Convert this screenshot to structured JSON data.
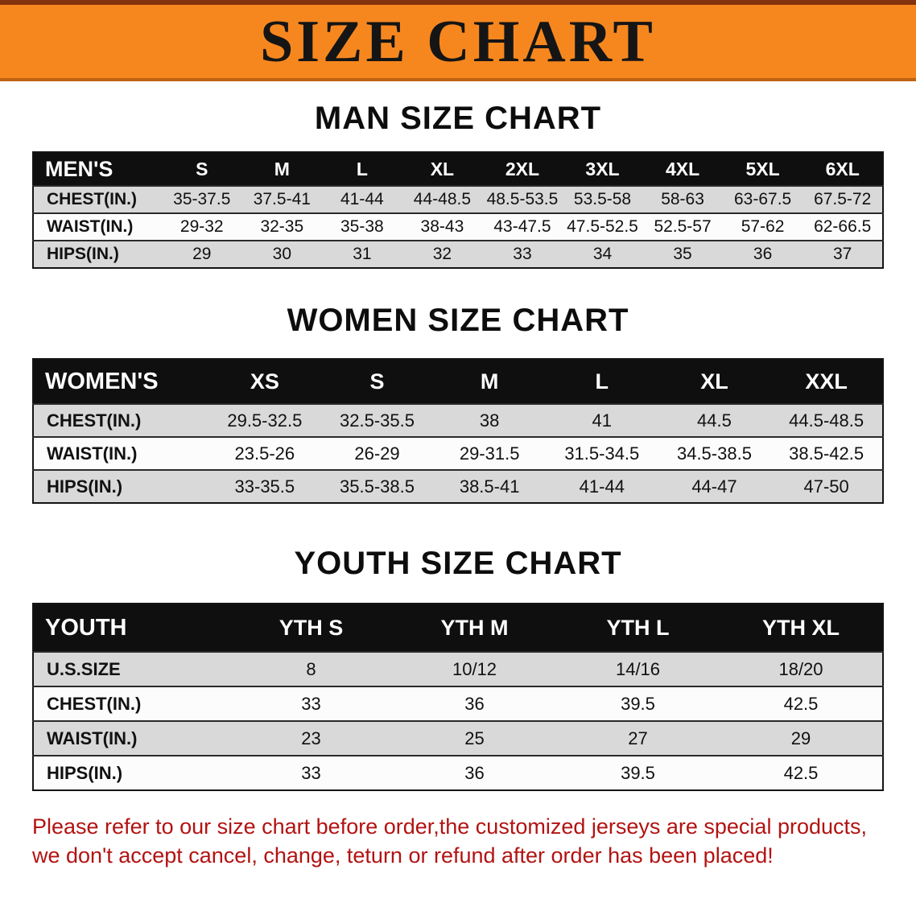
{
  "banner": {
    "title": "SIZE CHART"
  },
  "colors": {
    "banner_bg": "#f6871f",
    "table_header_bg": "#0f0f0f",
    "row_stripe_gray": "#d9d9d9",
    "footnote_red": "#b21312"
  },
  "sections": [
    {
      "heading": "MAN SIZE CHART",
      "table": {
        "header": [
          "MEN'S",
          "S",
          "M",
          "L",
          "XL",
          "2XL",
          "3XL",
          "4XL",
          "5XL",
          "6XL"
        ],
        "rows": [
          {
            "label": "CHEST(IN.)",
            "values": [
              "35-37.5",
              "37.5-41",
              "41-44",
              "44-48.5",
              "48.5-53.5",
              "53.5-58",
              "58-63",
              "63-67.5",
              "67.5-72"
            ]
          },
          {
            "label": "WAIST(IN.)",
            "values": [
              "29-32",
              "32-35",
              "35-38",
              "38-43",
              "43-47.5",
              "47.5-52.5",
              "52.5-57",
              "57-62",
              "62-66.5"
            ]
          },
          {
            "label": "HIPS(IN.)",
            "values": [
              "29",
              "30",
              "31",
              "32",
              "33",
              "34",
              "35",
              "36",
              "37"
            ]
          }
        ]
      }
    },
    {
      "heading": "WOMEN SIZE CHART",
      "table": {
        "header": [
          "WOMEN'S",
          "XS",
          "S",
          "M",
          "L",
          "XL",
          "XXL"
        ],
        "rows": [
          {
            "label": "CHEST(IN.)",
            "values": [
              "29.5-32.5",
              "32.5-35.5",
              "38",
              "41",
              "44.5",
              "44.5-48.5"
            ]
          },
          {
            "label": "WAIST(IN.)",
            "values": [
              "23.5-26",
              "26-29",
              "29-31.5",
              "31.5-34.5",
              "34.5-38.5",
              "38.5-42.5"
            ]
          },
          {
            "label": "HIPS(IN.)",
            "values": [
              "33-35.5",
              "35.5-38.5",
              "38.5-41",
              "41-44",
              "44-47",
              "47-50"
            ]
          }
        ]
      }
    },
    {
      "heading": "YOUTH SIZE CHART",
      "table": {
        "header": [
          "YOUTH",
          "YTH S",
          "YTH M",
          "YTH L",
          "YTH XL"
        ],
        "rows": [
          {
            "label": "U.S.SIZE",
            "values": [
              "8",
              "10/12",
              "14/16",
              "18/20"
            ]
          },
          {
            "label": "CHEST(IN.)",
            "values": [
              "33",
              "36",
              "39.5",
              "42.5"
            ]
          },
          {
            "label": "WAIST(IN.)",
            "values": [
              "23",
              "25",
              "27",
              "29"
            ]
          },
          {
            "label": "HIPS(IN.)",
            "values": [
              "33",
              "36",
              "39.5",
              "42.5"
            ]
          }
        ]
      }
    }
  ],
  "footnote": {
    "line1": "Please refer to our size chart before order,the customized jerseys are special products,",
    "line2": "we don't accept cancel, change, teturn or refund after order has been placed!"
  }
}
